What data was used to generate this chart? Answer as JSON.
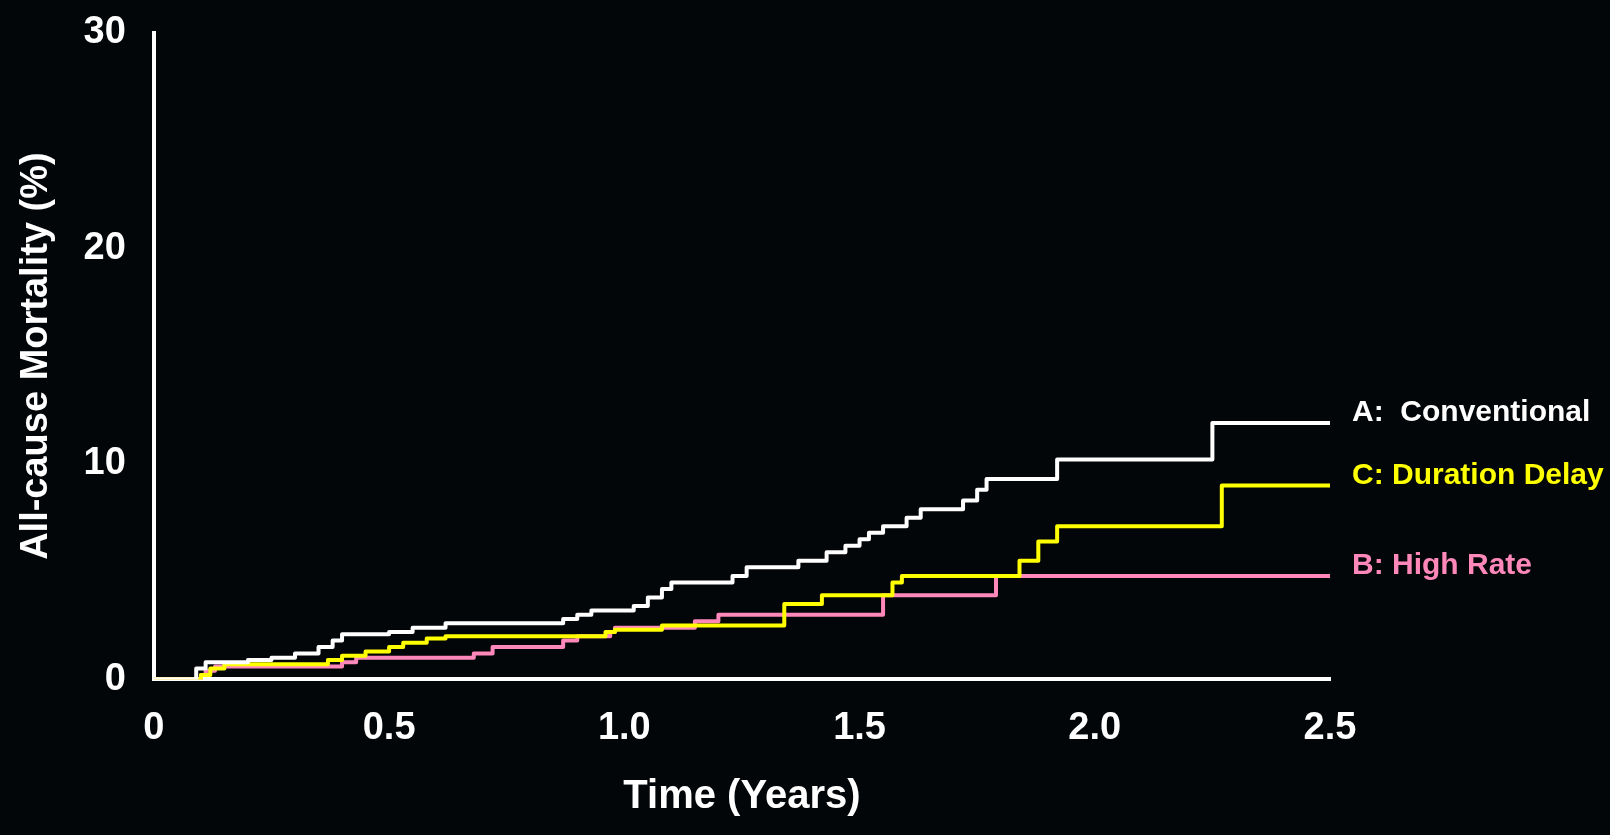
{
  "chart_data": {
    "type": "step",
    "xlabel": "Time (Years)",
    "ylabel": "All-cause Mortality (%)",
    "xlim": [
      0,
      2.5
    ],
    "xticks": [
      0,
      0.5,
      {
        "value": 1,
        "label": "1.0"
      },
      1.5,
      {
        "value": 2,
        "label": "2.0"
      },
      2.5
    ],
    "ylim": [
      0,
      30
    ],
    "yticks": [
      0,
      10,
      20,
      30
    ],
    "grid": false,
    "legend": false,
    "marker": "none",
    "series": [
      {
        "name": "A:  Conventional",
        "color": "#ffffff",
        "x": [
          0,
          0.09,
          0.11,
          0.2,
          0.25,
          0.3,
          0.35,
          0.38,
          0.4,
          0.5,
          0.55,
          0.62,
          0.87,
          0.9,
          0.93,
          1.02,
          1.05,
          1.08,
          1.1,
          1.23,
          1.26,
          1.37,
          1.43,
          1.47,
          1.5,
          1.52,
          1.55,
          1.6,
          1.63,
          1.72,
          1.75,
          1.77,
          1.92,
          2.25,
          2.5
        ],
        "values": [
          0,
          0.5,
          0.8,
          0.9,
          1.0,
          1.2,
          1.5,
          1.8,
          2.1,
          2.2,
          2.4,
          2.6,
          2.8,
          3.0,
          3.2,
          3.4,
          3.8,
          4.2,
          4.5,
          4.8,
          5.2,
          5.5,
          5.9,
          6.2,
          6.5,
          6.8,
          7.1,
          7.5,
          7.9,
          8.3,
          8.8,
          9.3,
          10.2,
          11.9,
          11.9
        ]
      },
      {
        "name": "C: Duration Delay",
        "color": "#ffff00",
        "x": [
          0,
          0.1,
          0.12,
          0.15,
          0.37,
          0.4,
          0.45,
          0.5,
          0.53,
          0.58,
          0.62,
          0.96,
          0.98,
          1.08,
          1.34,
          1.42,
          1.57,
          1.59,
          1.84,
          1.88,
          1.92,
          2.27,
          2.5
        ],
        "values": [
          0,
          0.2,
          0.5,
          0.7,
          0.9,
          1.1,
          1.3,
          1.5,
          1.7,
          1.9,
          2.0,
          2.2,
          2.3,
          2.5,
          3.5,
          3.9,
          4.5,
          4.8,
          5.5,
          6.4,
          7.1,
          9.0,
          9.0
        ]
      },
      {
        "name": "B: High Rate",
        "color": "#ff88bb",
        "x": [
          0,
          0.1,
          0.11,
          0.13,
          0.4,
          0.43,
          0.68,
          0.72,
          0.87,
          0.9,
          0.97,
          0.98,
          1.15,
          1.2,
          1.55,
          1.79,
          2.5
        ],
        "values": [
          0,
          0.2,
          0.4,
          0.6,
          0.8,
          1.0,
          1.2,
          1.5,
          1.8,
          2.0,
          2.2,
          2.4,
          2.7,
          3.0,
          3.9,
          4.8,
          4.8
        ]
      }
    ]
  }
}
